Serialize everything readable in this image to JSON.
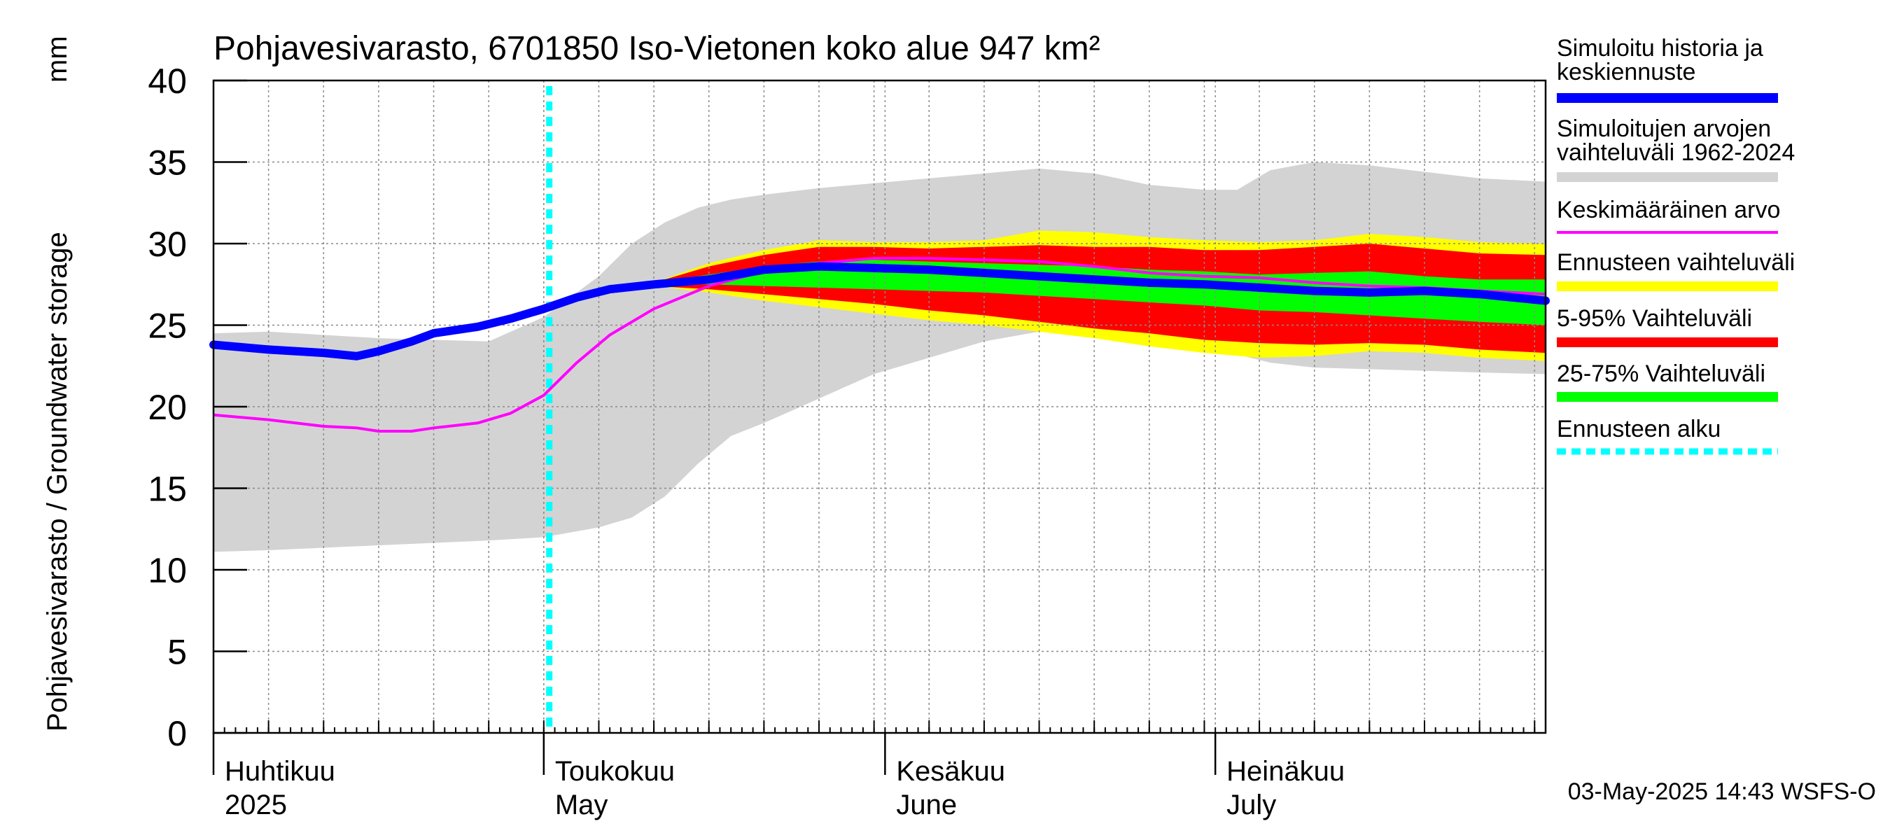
{
  "chart_data": {
    "type": "area",
    "title": "Pohjavesivarasto, 6701850 Iso-Vietonen koko alue 947 km²",
    "ylabel": "Pohjavesivarasto / Groundwater storage",
    "yunit": "mm",
    "ylim": [
      0,
      40
    ],
    "yticks": [
      "0",
      "5",
      "10",
      "15",
      "20",
      "25",
      "30",
      "35",
      "40"
    ],
    "x_start_day": 0,
    "x_end_day": 121,
    "month_labels": [
      {
        "day": 0,
        "fi": "Huhtikuu",
        "en": "2025"
      },
      {
        "day": 30,
        "fi": "Toukokuu",
        "en": "May"
      },
      {
        "day": 61,
        "fi": "Kesäkuu",
        "en": "June"
      },
      {
        "day": 91,
        "fi": "Heinäkuu",
        "en": "July"
      }
    ],
    "forecast_start_day": 30.5,
    "historic_range": {
      "day": [
        0,
        5,
        15,
        25,
        30,
        35,
        38,
        41,
        44,
        47,
        50,
        55,
        60,
        65,
        70,
        75,
        80,
        85,
        90,
        93,
        96,
        100,
        105,
        110,
        115,
        121
      ],
      "upper": [
        24.5,
        24.6,
        24.2,
        24.0,
        25.5,
        28.0,
        30.0,
        31.3,
        32.2,
        32.7,
        33.0,
        33.4,
        33.7,
        34.0,
        34.3,
        34.6,
        34.3,
        33.6,
        33.3,
        33.3,
        34.5,
        35.0,
        34.8,
        34.4,
        34.0,
        33.8
      ],
      "lower": [
        11.1,
        11.2,
        11.5,
        11.8,
        12.0,
        12.6,
        13.2,
        14.5,
        16.5,
        18.2,
        19.0,
        20.5,
        22.0,
        23.0,
        24.0,
        24.6,
        24.7,
        24.3,
        23.5,
        23.2,
        22.7,
        22.4,
        22.3,
        22.2,
        22.1,
        22.0
      ]
    },
    "ennuste_range": {
      "day": [
        40,
        45,
        50,
        55,
        60,
        65,
        70,
        75,
        80,
        85,
        90,
        95,
        100,
        105,
        110,
        115,
        121
      ],
      "upper": [
        27.6,
        28.8,
        29.6,
        30.2,
        30.1,
        30.1,
        30.2,
        30.8,
        30.7,
        30.4,
        30.2,
        30.1,
        30.2,
        30.6,
        30.4,
        30.1,
        30.0
      ],
      "lower": [
        27.4,
        27.0,
        26.5,
        26.1,
        25.7,
        25.3,
        25.0,
        24.6,
        24.2,
        23.7,
        23.3,
        23.0,
        23.1,
        23.4,
        23.3,
        23.0,
        22.8
      ]
    },
    "range_5_95": {
      "day": [
        40,
        45,
        50,
        55,
        60,
        65,
        70,
        75,
        80,
        85,
        90,
        95,
        100,
        105,
        110,
        115,
        121
      ],
      "upper": [
        27.6,
        28.6,
        29.3,
        29.8,
        29.8,
        29.7,
        29.8,
        29.9,
        29.8,
        29.8,
        29.6,
        29.6,
        29.8,
        30.0,
        29.7,
        29.4,
        29.3
      ],
      "lower": [
        27.4,
        27.2,
        26.9,
        26.6,
        26.3,
        25.9,
        25.6,
        25.2,
        24.8,
        24.5,
        24.1,
        23.9,
        23.8,
        23.9,
        23.8,
        23.5,
        23.3
      ]
    },
    "range_25_75": {
      "day": [
        40,
        45,
        50,
        55,
        60,
        65,
        70,
        75,
        80,
        85,
        90,
        95,
        100,
        105,
        110,
        115,
        121
      ],
      "upper": [
        27.6,
        28.1,
        28.6,
        28.9,
        29.0,
        28.9,
        28.8,
        28.7,
        28.6,
        28.4,
        28.3,
        28.1,
        28.2,
        28.3,
        28.0,
        27.8,
        27.8
      ],
      "lower": [
        27.5,
        27.5,
        27.4,
        27.3,
        27.2,
        27.1,
        27.0,
        26.8,
        26.6,
        26.4,
        26.2,
        25.9,
        25.8,
        25.6,
        25.4,
        25.2,
        25.0
      ]
    },
    "series": [
      {
        "name": "Simuloitu historia ja keskiennuste",
        "day": [
          0,
          5,
          10,
          13,
          15,
          18,
          20,
          24,
          27,
          30,
          33,
          36,
          40,
          45,
          50,
          55,
          60,
          65,
          70,
          75,
          80,
          85,
          90,
          95,
          100,
          105,
          110,
          115,
          121
        ],
        "values": [
          23.8,
          23.5,
          23.3,
          23.1,
          23.4,
          24.0,
          24.5,
          24.9,
          25.4,
          26.0,
          26.7,
          27.2,
          27.5,
          27.8,
          28.4,
          28.6,
          28.5,
          28.4,
          28.2,
          28.0,
          27.8,
          27.6,
          27.5,
          27.3,
          27.1,
          27.0,
          27.1,
          26.9,
          26.5
        ]
      },
      {
        "name": "Keskimääräinen arvo",
        "day": [
          0,
          5,
          10,
          13,
          15,
          18,
          20,
          24,
          27,
          30,
          33,
          36,
          40,
          45,
          50,
          55,
          60,
          65,
          70,
          75,
          80,
          85,
          90,
          95,
          100,
          105,
          110,
          115,
          121
        ],
        "values": [
          19.5,
          19.2,
          18.8,
          18.7,
          18.5,
          18.5,
          18.7,
          19.0,
          19.6,
          20.7,
          22.7,
          24.4,
          26.0,
          27.4,
          28.3,
          28.8,
          29.1,
          29.1,
          29.0,
          28.9,
          28.6,
          28.2,
          28.0,
          27.9,
          27.6,
          27.4,
          27.3,
          27.1,
          26.9
        ]
      }
    ],
    "legend": [
      {
        "label": "Simuloitu historia ja keskiennuste",
        "color": "#0000ff"
      },
      {
        "label": "Simuloitujen arvojen vaihteluväli 1962-2024",
        "color": "#d3d3d3"
      },
      {
        "label": "Keskimääräinen arvo",
        "color": "#ff00ff"
      },
      {
        "label": "Ennusteen vaihteluväli",
        "color": "#ffff00"
      },
      {
        "label": "5-95% Vaihteluväli",
        "color": "#ff0000"
      },
      {
        "label": "25-75% Vaihteluväli",
        "color": "#00ff00"
      },
      {
        "label": "Ennusteen alku",
        "color": "#00ffff"
      }
    ],
    "timestamp": "03-May-2025 14:43 WSFS-O"
  }
}
